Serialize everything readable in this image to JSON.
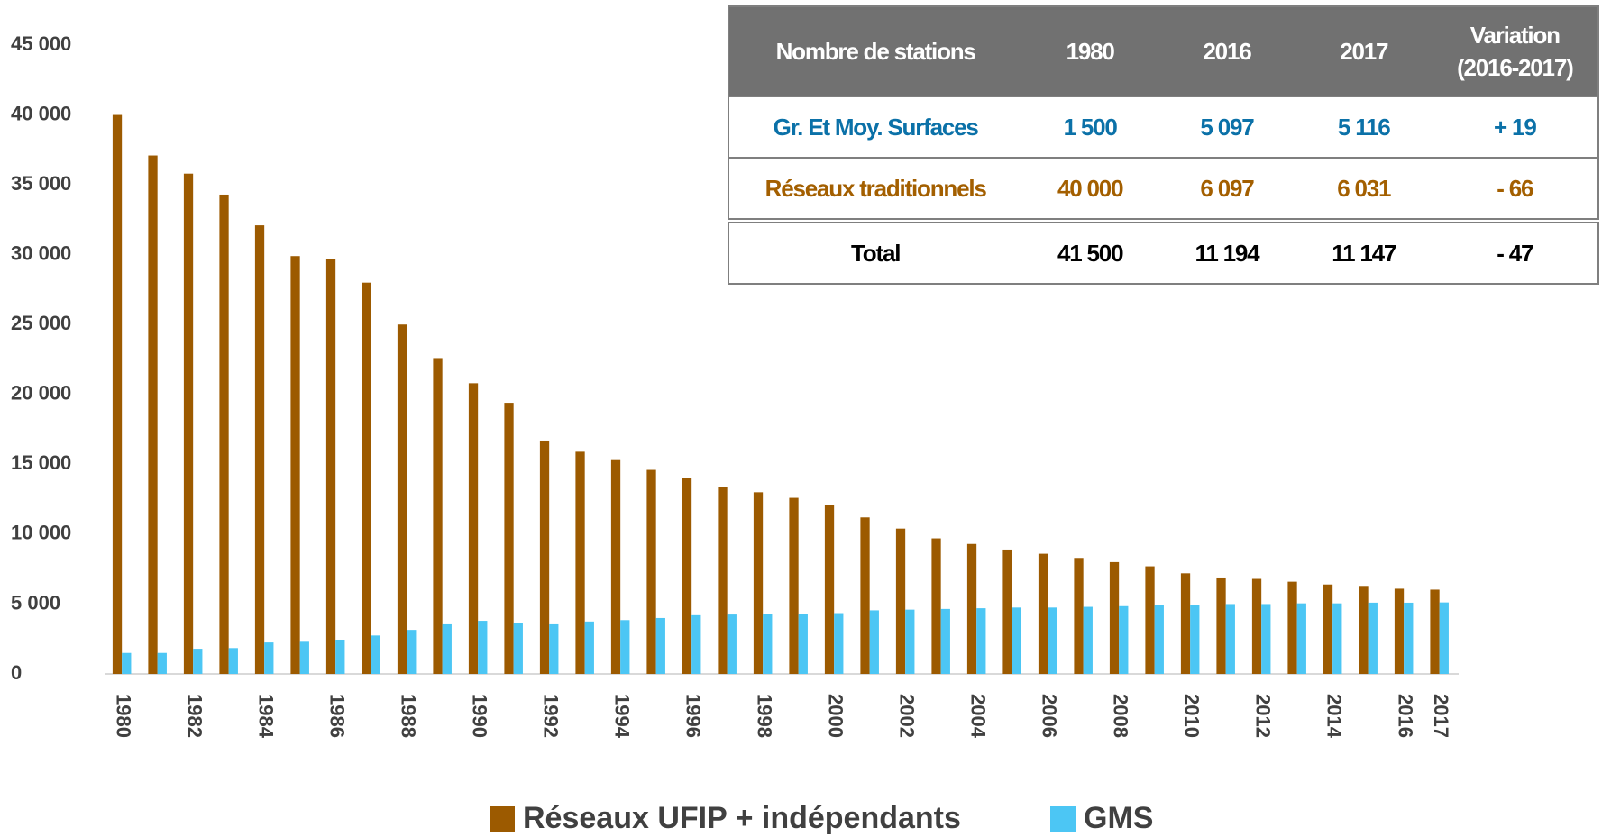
{
  "chart_data": {
    "type": "bar",
    "categories": [
      "1980",
      null,
      "1982",
      null,
      "1984",
      null,
      "1986",
      null,
      "1988",
      null,
      "1990",
      null,
      "1992",
      null,
      "1994",
      null,
      "1996",
      null,
      "1998",
      null,
      "2000",
      null,
      "2002",
      null,
      "2004",
      null,
      "2006",
      null,
      "2008",
      null,
      "2010",
      null,
      "2012",
      null,
      "2014",
      null,
      "2016",
      "2017"
    ],
    "series": [
      {
        "name": "Réseaux UFIP + indépendants",
        "color": "#9c5a00",
        "values": [
          40000,
          37100,
          35800,
          34300,
          32100,
          29900,
          29700,
          28000,
          25000,
          22600,
          20800,
          19400,
          16700,
          15900,
          15300,
          14600,
          14000,
          13400,
          13000,
          12600,
          12100,
          11200,
          10400,
          9700,
          9300,
          8900,
          8600,
          8300,
          8000,
          7700,
          7200,
          6900,
          6800,
          6600,
          6400,
          6300,
          6097,
          6031
        ]
      },
      {
        "name": "GMS",
        "color": "#4cc6f4",
        "values": [
          1500,
          1500,
          1800,
          1850,
          2250,
          2300,
          2450,
          2750,
          3150,
          3550,
          3800,
          3650,
          3550,
          3750,
          3850,
          4000,
          4200,
          4250,
          4300,
          4300,
          4350,
          4550,
          4600,
          4650,
          4700,
          4750,
          4750,
          4800,
          4850,
          4950,
          4950,
          5000,
          5000,
          5050,
          5050,
          5100,
          5097,
          5116
        ]
      }
    ],
    "ylim": [
      0,
      45000
    ],
    "yticks": [
      {
        "value": 0,
        "label": "0"
      },
      {
        "value": 5000,
        "label": "5 000"
      },
      {
        "value": 10000,
        "label": "10 000"
      },
      {
        "value": 15000,
        "label": "15 000"
      },
      {
        "value": 20000,
        "label": "20 000"
      },
      {
        "value": 25000,
        "label": "25 000"
      },
      {
        "value": 30000,
        "label": "30 000"
      },
      {
        "value": 35000,
        "label": "35 000"
      },
      {
        "value": 40000,
        "label": "40 000"
      },
      {
        "value": 45000,
        "label": "45 000"
      }
    ],
    "legend": "bottom"
  },
  "table": {
    "header": [
      "Nombre de stations",
      "1980",
      "2016",
      "2017",
      "Variation\n(2016-2017)"
    ],
    "rows": [
      [
        "Gr. Et Moy. Surfaces",
        "1 500",
        "5 097",
        "5 116",
        "+ 19"
      ],
      [
        "Réseaux traditionnels",
        "40 000",
        "6 097",
        "6 031",
        "-  66"
      ],
      [
        "Total",
        "41 500",
        "11 194",
        "11 147",
        "-  47"
      ]
    ]
  }
}
